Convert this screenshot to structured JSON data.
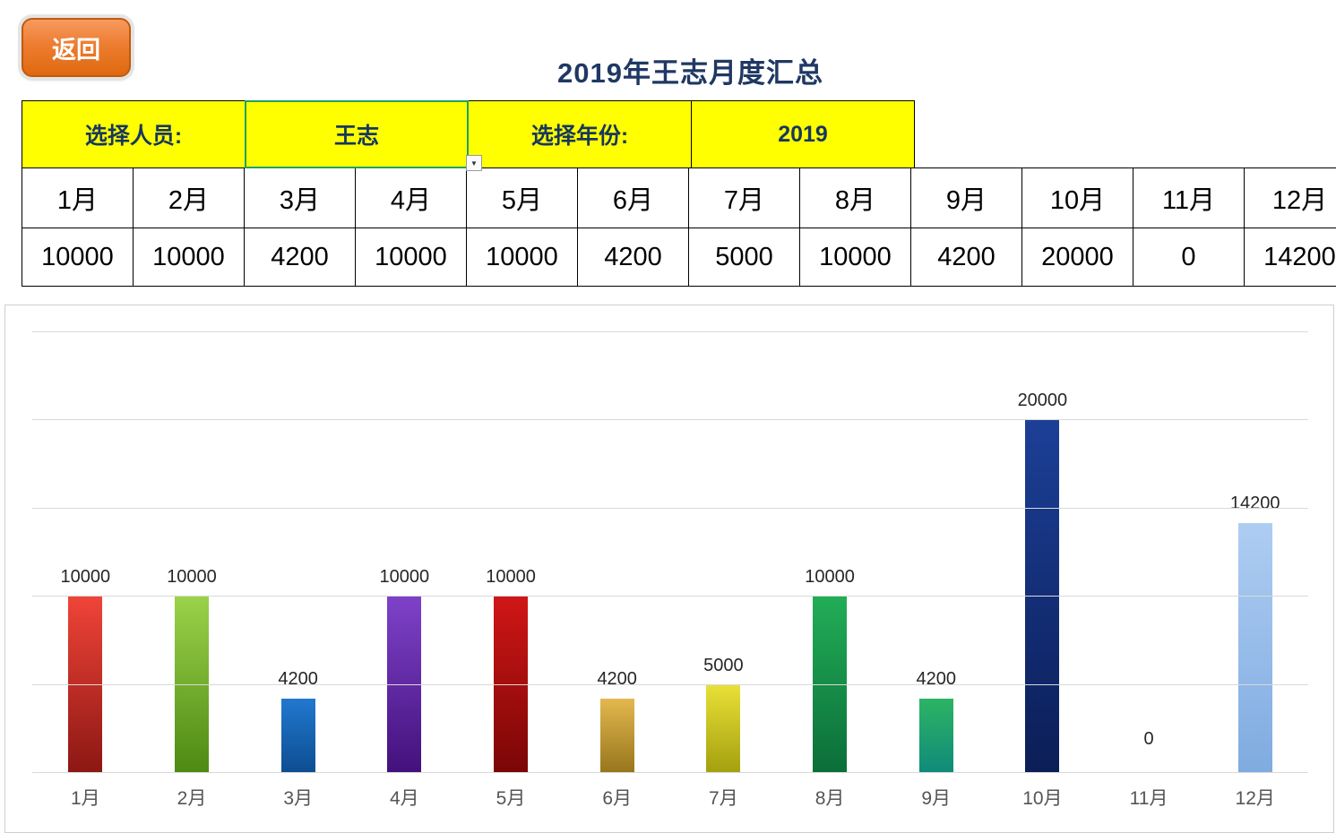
{
  "back_button": {
    "label": "返回"
  },
  "title": "2019年王志月度汇总",
  "selector": {
    "person_label": "选择人员:",
    "person_value": "王志",
    "year_label": "选择年份:",
    "year_value": "2019",
    "dropdown_icon": "▼",
    "highlight_color": "#ffff00",
    "selected_border_color": "#1fa35c"
  },
  "table": {
    "months": [
      "1月",
      "2月",
      "3月",
      "4月",
      "5月",
      "6月",
      "7月",
      "8月",
      "9月",
      "10月",
      "11月",
      "12月"
    ],
    "values": [
      "10000",
      "10000",
      "4200",
      "10000",
      "10000",
      "4200",
      "5000",
      "10000",
      "4200",
      "20000",
      "0",
      "14200"
    ]
  },
  "chart_data": {
    "type": "bar",
    "title": "",
    "xlabel": "",
    "ylabel": "",
    "categories": [
      "1月",
      "2月",
      "3月",
      "4月",
      "5月",
      "6月",
      "7月",
      "8月",
      "9月",
      "10月",
      "11月",
      "12月"
    ],
    "values": [
      10000,
      10000,
      4200,
      10000,
      10000,
      4200,
      5000,
      10000,
      4200,
      20000,
      0,
      14200
    ],
    "ylim": [
      0,
      25000
    ],
    "gridline_step": 5000,
    "grid": true,
    "legend": "none",
    "bar_colors": [
      [
        "#f04438",
        "#8c1713"
      ],
      [
        "#9bd24a",
        "#4d8a13"
      ],
      [
        "#2178cf",
        "#0d4d91"
      ],
      [
        "#7e42c9",
        "#43117c"
      ],
      [
        "#d01616",
        "#7a0606"
      ],
      [
        "#e3b84e",
        "#97751c"
      ],
      [
        "#e8e037",
        "#a3a00f"
      ],
      [
        "#22ad57",
        "#0b6e38"
      ],
      [
        "#2db464",
        "#0f8a7a"
      ],
      [
        "#1c3f97",
        "#0b1e57"
      ],
      [
        "#9bbde8",
        "#9bbde8"
      ],
      [
        "#aecdf2",
        "#7fabe0"
      ]
    ]
  }
}
